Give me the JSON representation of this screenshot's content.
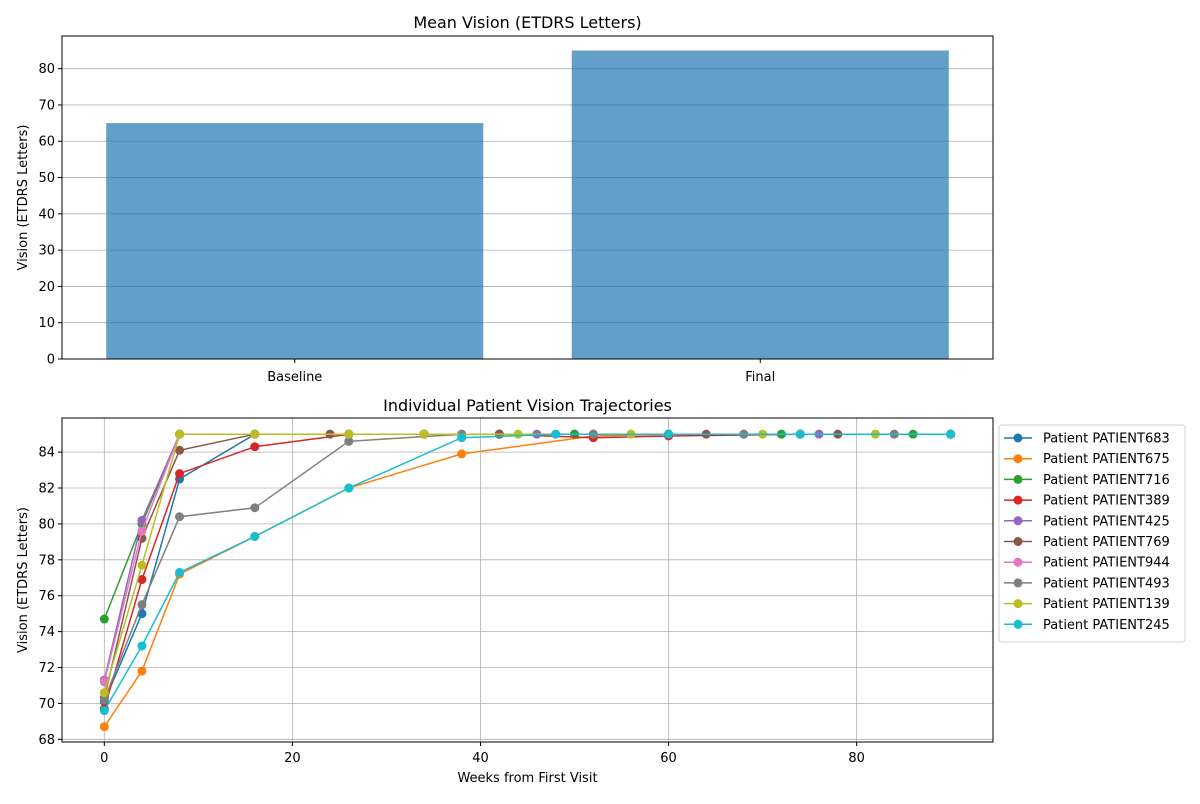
{
  "chart_data": [
    {
      "type": "bar",
      "title": "Mean Vision (ETDRS Letters)",
      "xlabel": "",
      "ylabel": "Vision (ETDRS Letters)",
      "categories": [
        "Baseline",
        "Final"
      ],
      "values": [
        65,
        85
      ],
      "ylim": [
        0,
        89
      ],
      "yticks": [
        0,
        10,
        20,
        30,
        40,
        50,
        60,
        70,
        80
      ],
      "grid": "y",
      "bar_color": "#1f77b4"
    },
    {
      "type": "line",
      "title": "Individual Patient Vision Trajectories",
      "xlabel": "Weeks from First Visit",
      "ylabel": "Vision (ETDRS Letters)",
      "xlim": [
        -4.5,
        94.5
      ],
      "ylim": [
        67.85,
        85.9
      ],
      "xticks": [
        0,
        20,
        40,
        60,
        80
      ],
      "yticks": [
        68,
        70,
        72,
        74,
        76,
        78,
        80,
        82,
        84
      ],
      "grid": "both",
      "legend_position": "outside-right",
      "series": [
        {
          "name": "Patient PATIENT683",
          "color": "#1f77b4",
          "points": [
            [
              0,
              70.1
            ],
            [
              4,
              75.0
            ],
            [
              8,
              82.5
            ],
            [
              16,
              85.0
            ],
            [
              26,
              85.0
            ],
            [
              34,
              85.0
            ],
            [
              42,
              85.0
            ],
            [
              50,
              85.0
            ],
            [
              60,
              85.0
            ],
            [
              74,
              85.0
            ],
            [
              90,
              85.0
            ]
          ]
        },
        {
          "name": "Patient PATIENT675",
          "color": "#ff7f0e",
          "points": [
            [
              0,
              68.7
            ],
            [
              4,
              71.8
            ],
            [
              8,
              77.2
            ],
            [
              16,
              79.3
            ],
            [
              26,
              82.0
            ],
            [
              38,
              83.9
            ],
            [
              52,
              84.9
            ],
            [
              60,
              85.0
            ],
            [
              74,
              85.0
            ],
            [
              90,
              85.0
            ]
          ]
        },
        {
          "name": "Patient PATIENT716",
          "color": "#2ca02c",
          "points": [
            [
              0,
              74.7
            ],
            [
              4,
              80.0
            ],
            [
              8,
              85.0
            ],
            [
              16,
              85.0
            ],
            [
              26,
              85.0
            ],
            [
              34,
              85.0
            ],
            [
              42,
              85.0
            ],
            [
              50,
              85.0
            ],
            [
              60,
              85.0
            ],
            [
              72,
              85.0
            ],
            [
              86,
              85.0
            ]
          ]
        },
        {
          "name": "Patient PATIENT389",
          "color": "#d62728",
          "points": [
            [
              0,
              69.7
            ],
            [
              4,
              76.9
            ],
            [
              8,
              82.8
            ],
            [
              16,
              84.3
            ],
            [
              26,
              85.0
            ],
            [
              34,
              85.0
            ],
            [
              42,
              85.0
            ],
            [
              52,
              84.8
            ],
            [
              60,
              84.9
            ],
            [
              74,
              85.0
            ],
            [
              90,
              85.0
            ]
          ]
        },
        {
          "name": "Patient PATIENT425",
          "color": "#9467bd",
          "points": [
            [
              0,
              71.3
            ],
            [
              4,
              80.2
            ],
            [
              8,
              85.0
            ],
            [
              16,
              85.0
            ],
            [
              26,
              85.0
            ],
            [
              34,
              85.0
            ],
            [
              46,
              85.0
            ],
            [
              60,
              85.0
            ],
            [
              76,
              85.0
            ],
            [
              90,
              85.0
            ]
          ]
        },
        {
          "name": "Patient PATIENT769",
          "color": "#8c564b",
          "points": [
            [
              0,
              70.3
            ],
            [
              4,
              79.2
            ],
            [
              8,
              84.1
            ],
            [
              16,
              85.0
            ],
            [
              24,
              85.0
            ],
            [
              34,
              85.0
            ],
            [
              42,
              85.0
            ],
            [
              52,
              85.0
            ],
            [
              64,
              85.0
            ],
            [
              78,
              85.0
            ],
            [
              90,
              85.0
            ]
          ]
        },
        {
          "name": "Patient PATIENT944",
          "color": "#e377c2",
          "points": [
            [
              0,
              71.2
            ],
            [
              4,
              79.6
            ],
            [
              8,
              85.0
            ],
            [
              16,
              85.0
            ],
            [
              26,
              85.0
            ],
            [
              38,
              85.0
            ],
            [
              52,
              85.0
            ],
            [
              68,
              85.0
            ],
            [
              84,
              85.0
            ]
          ]
        },
        {
          "name": "Patient PATIENT493",
          "color": "#7f7f7f",
          "points": [
            [
              0,
              70.2
            ],
            [
              4,
              75.5
            ],
            [
              8,
              80.4
            ],
            [
              16,
              80.9
            ],
            [
              26,
              84.6
            ],
            [
              38,
              85.0
            ],
            [
              52,
              85.0
            ],
            [
              68,
              85.0
            ],
            [
              84,
              85.0
            ]
          ]
        },
        {
          "name": "Patient PATIENT139",
          "color": "#bcbd22",
          "points": [
            [
              0,
              70.6
            ],
            [
              4,
              77.7
            ],
            [
              8,
              85.0
            ],
            [
              16,
              85.0
            ],
            [
              26,
              85.0
            ],
            [
              34,
              85.0
            ],
            [
              44,
              85.0
            ],
            [
              56,
              85.0
            ],
            [
              70,
              85.0
            ],
            [
              82,
              85.0
            ]
          ]
        },
        {
          "name": "Patient PATIENT245",
          "color": "#17becf",
          "points": [
            [
              0,
              69.6
            ],
            [
              4,
              73.2
            ],
            [
              8,
              77.3
            ],
            [
              16,
              79.3
            ],
            [
              26,
              82.0
            ],
            [
              38,
              84.8
            ],
            [
              48,
              85.0
            ],
            [
              60,
              85.0
            ],
            [
              74,
              85.0
            ],
            [
              90,
              85.0
            ]
          ]
        }
      ]
    }
  ]
}
